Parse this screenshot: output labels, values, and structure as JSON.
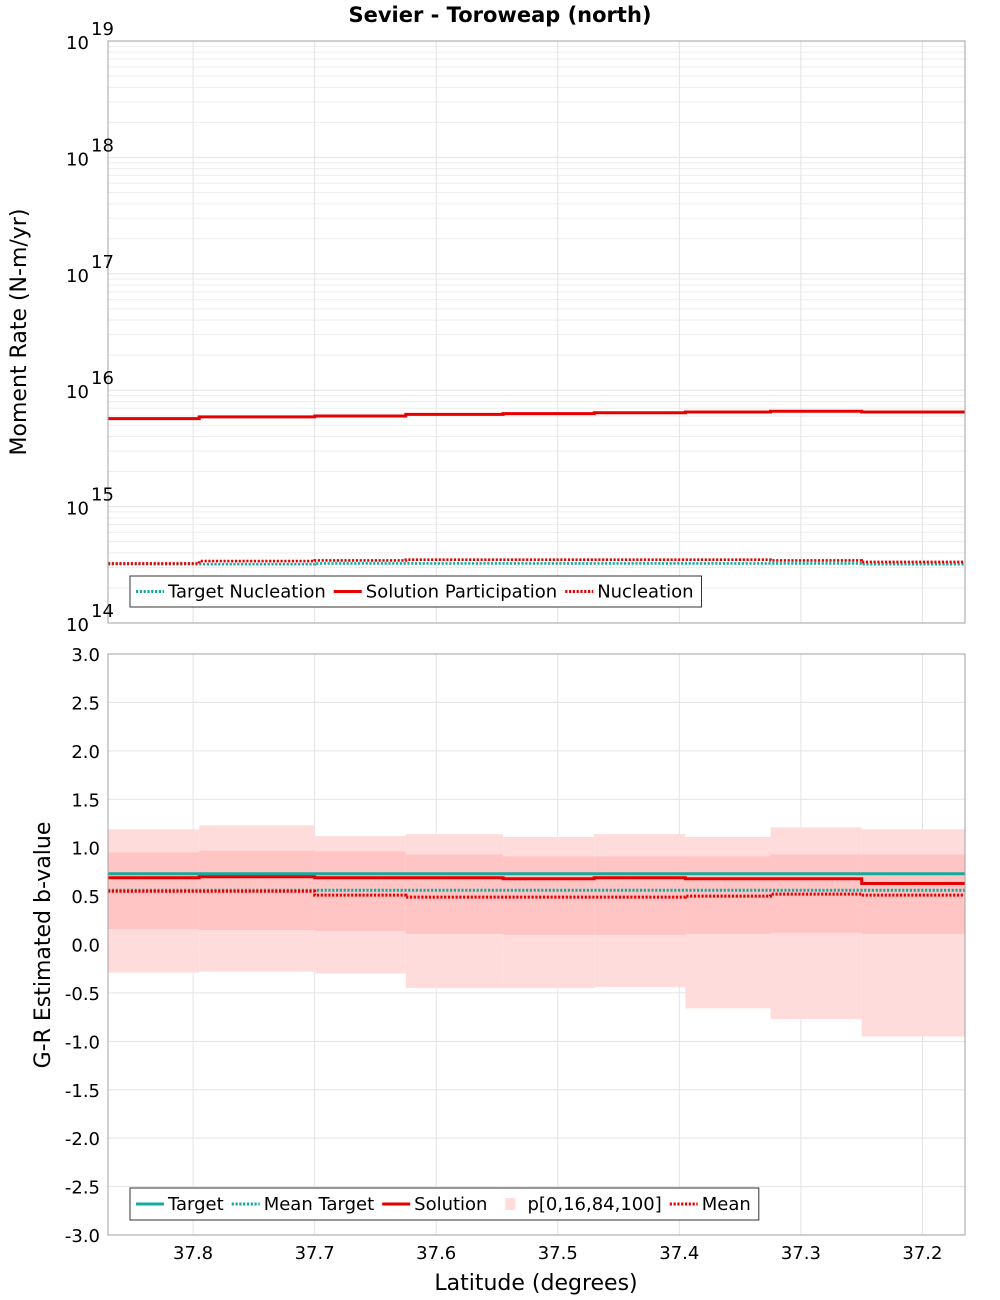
{
  "title": "Sevier - Toroweap (north)",
  "xlabel": "Latitude (degrees)",
  "colors": {
    "target": "#16a99c",
    "solution": "#e60000",
    "band_outer": "#ffdcdc",
    "band_inner": "#ffc4c4"
  },
  "chart_data": [
    {
      "type": "line",
      "ylabel": "Moment Rate (N-m/yr)",
      "yscale": "log",
      "ylim": [
        100000000000000.0,
        1e+19
      ],
      "xlim": [
        37.87,
        37.165
      ],
      "y_ticks": [
        {
          "base": "10",
          "exp": "14",
          "value": 100000000000000.0
        },
        {
          "base": "10",
          "exp": "15",
          "value": 1000000000000000.0
        },
        {
          "base": "10",
          "exp": "16",
          "value": 1e+16
        },
        {
          "base": "10",
          "exp": "17",
          "value": 1e+17
        },
        {
          "base": "10",
          "exp": "18",
          "value": 1e+18
        },
        {
          "base": "10",
          "exp": "19",
          "value": 1e+19
        }
      ],
      "grid": true,
      "legend_position": "bottom-left",
      "bin_edges": [
        37.87,
        37.795,
        37.7,
        37.625,
        37.545,
        37.47,
        37.395,
        37.325,
        37.25,
        37.165
      ],
      "series": [
        {
          "name": "Target Nucleation",
          "style": "dotted",
          "color": "#16a99c",
          "values": [
            320000000000000.0,
            320000000000000.0,
            325000000000000.0,
            325000000000000.0,
            325000000000000.0,
            325000000000000.0,
            325000000000000.0,
            325000000000000.0,
            320000000000000.0
          ]
        },
        {
          "name": "Solution Participation",
          "style": "solid",
          "color": "#e60000",
          "values": [
            5700000000000000.0,
            5900000000000000.0,
            6000000000000000.0,
            6200000000000000.0,
            6300000000000000.0,
            6400000000000000.0,
            6500000000000000.0,
            6600000000000000.0,
            6500000000000000.0
          ]
        },
        {
          "name": "Nucleation",
          "style": "dotted",
          "color": "#e60000",
          "values": [
            325000000000000.0,
            340000000000000.0,
            345000000000000.0,
            350000000000000.0,
            350000000000000.0,
            350000000000000.0,
            350000000000000.0,
            345000000000000.0,
            335000000000000.0
          ]
        }
      ]
    },
    {
      "type": "line",
      "ylabel": "G-R Estimated b-value",
      "ylim": [
        -3.0,
        3.0
      ],
      "xlim": [
        37.87,
        37.165
      ],
      "y_ticks": [
        "-3.0",
        "-2.5",
        "-2.0",
        "-1.5",
        "-1.0",
        "-0.5",
        "0.0",
        "0.5",
        "1.0",
        "1.5",
        "2.0",
        "2.5",
        "3.0"
      ],
      "x_ticks": [
        "37.8",
        "37.7",
        "37.6",
        "37.5",
        "37.4",
        "37.3",
        "37.2"
      ],
      "grid": true,
      "legend_position": "bottom-left",
      "bin_edges": [
        37.87,
        37.795,
        37.7,
        37.625,
        37.545,
        37.47,
        37.395,
        37.325,
        37.25,
        37.165
      ],
      "band": {
        "name": "p[0,16,84,100]",
        "p0": [
          -0.29,
          -0.28,
          -0.3,
          -0.45,
          -0.45,
          -0.44,
          -0.66,
          -0.77,
          -0.95
        ],
        "p16": [
          0.16,
          0.15,
          0.14,
          0.11,
          0.1,
          0.1,
          0.11,
          0.12,
          0.11
        ],
        "p84": [
          0.95,
          0.97,
          0.96,
          0.93,
          0.91,
          0.91,
          0.91,
          0.93,
          0.93
        ],
        "p100": [
          1.19,
          1.23,
          1.12,
          1.14,
          1.11,
          1.14,
          1.11,
          1.21,
          1.19
        ]
      },
      "series": [
        {
          "name": "Target",
          "style": "solid",
          "color": "#16a99c",
          "width": 3,
          "values": [
            0.73,
            0.73,
            0.73,
            0.73,
            0.73,
            0.73,
            0.73,
            0.73,
            0.73
          ]
        },
        {
          "name": "Mean Target",
          "style": "dotted",
          "color": "#16a99c",
          "width": 3,
          "values": [
            0.56,
            0.56,
            0.56,
            0.56,
            0.56,
            0.56,
            0.56,
            0.56,
            0.56
          ]
        },
        {
          "name": "Solution",
          "style": "solid",
          "color": "#e60000",
          "width": 3,
          "values": [
            0.69,
            0.7,
            0.69,
            0.69,
            0.68,
            0.69,
            0.68,
            0.68,
            0.63
          ]
        },
        {
          "name": "Mean",
          "style": "dotted",
          "color": "#e60000",
          "width": 3,
          "values": [
            0.55,
            0.55,
            0.51,
            0.49,
            0.49,
            0.49,
            0.5,
            0.52,
            0.51
          ]
        }
      ],
      "legend_order": [
        "Target",
        "Mean Target",
        "Solution",
        "p[0,16,84,100]",
        "Mean"
      ]
    }
  ]
}
